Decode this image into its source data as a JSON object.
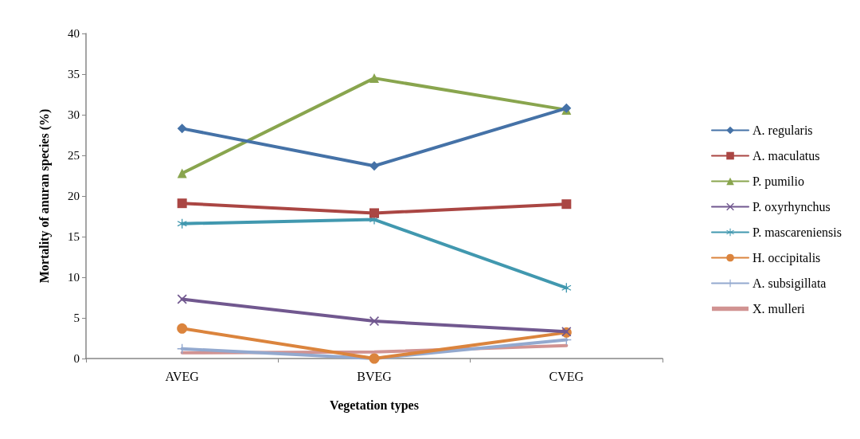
{
  "chart_data": {
    "type": "line",
    "xlabel": "Vegetation types",
    "ylabel": "Mortality of anuran species (%)",
    "categories": [
      "AVEG",
      "BVEG",
      "CVEG"
    ],
    "ylim": [
      0,
      40
    ],
    "yticks": [
      0,
      5,
      10,
      15,
      20,
      25,
      30,
      35,
      40
    ],
    "grid": false,
    "legend": "right",
    "line_style": "solid",
    "series": [
      {
        "name": "A. regularis",
        "color": "#4572a7",
        "marker": "diamond",
        "values": [
          28.3,
          23.7,
          30.8
        ]
      },
      {
        "name": "A. maculatus",
        "color": "#aa4643",
        "marker": "square",
        "values": [
          19.1,
          17.9,
          19.0
        ]
      },
      {
        "name": "P. pumilio",
        "color": "#89a54e",
        "marker": "triangle",
        "values": [
          22.8,
          34.5,
          30.6
        ]
      },
      {
        "name": "P. oxyrhynchus",
        "color": "#71588f",
        "marker": "cross",
        "values": [
          7.3,
          4.6,
          3.3
        ]
      },
      {
        "name": "P. mascareniensis",
        "color": "#4198af",
        "marker": "star",
        "values": [
          16.6,
          17.1,
          8.7
        ]
      },
      {
        "name": "H. occipitalis",
        "color": "#db843d",
        "marker": "circle",
        "values": [
          3.7,
          0,
          3.2
        ]
      },
      {
        "name": "A. subsigillata",
        "color": "#93a9cf",
        "marker": "plus",
        "values": [
          1.2,
          0,
          2.3
        ]
      },
      {
        "name": "X. mulleri",
        "color": "#d19392",
        "marker": "none",
        "values": [
          0.7,
          0.8,
          1.6
        ]
      }
    ]
  }
}
